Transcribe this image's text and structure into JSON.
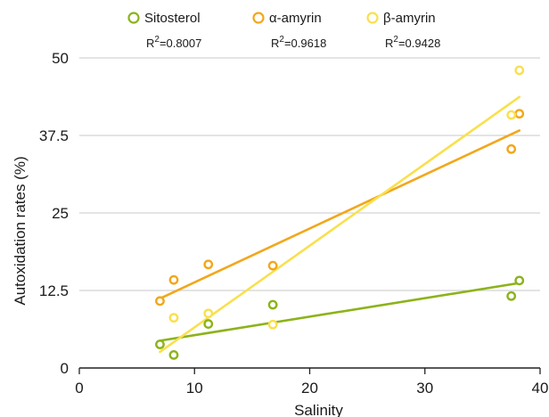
{
  "chart_data": {
    "type": "scatter",
    "xlabel": "Salinity",
    "ylabel": "Autoxidation rates (%)",
    "xlim": [
      0,
      40
    ],
    "ylim": [
      0,
      50
    ],
    "x_ticks": [
      0,
      10,
      20,
      30,
      40
    ],
    "x_tick_labels": [
      "0",
      "10",
      "20",
      "30",
      "40"
    ],
    "y_ticks": [
      0,
      12.5,
      25,
      37.5,
      50
    ],
    "y_tick_labels": [
      "0",
      "12.5",
      "25",
      "37.5",
      "50"
    ],
    "grid": "horizontal",
    "legend_position": "top",
    "series": [
      {
        "name": "Sitosterol",
        "r2_label": "R",
        "r2_exp": "2",
        "r2_value": "=0.8007",
        "color": "#8cb31a",
        "points": [
          {
            "x": 7,
            "y": 3.8
          },
          {
            "x": 8.2,
            "y": 2.1
          },
          {
            "x": 11.2,
            "y": 7.1
          },
          {
            "x": 16.8,
            "y": 10.2
          },
          {
            "x": 37.5,
            "y": 11.6
          },
          {
            "x": 38.2,
            "y": 14.1
          }
        ],
        "trendline": {
          "x": [
            7,
            38.2
          ],
          "y": [
            4.4,
            13.7
          ]
        }
      },
      {
        "name": "α-amyrin",
        "r2_label": "R",
        "r2_exp": "2",
        "r2_value": "=0.9618",
        "color": "#f2a71b",
        "points": [
          {
            "x": 7,
            "y": 10.8
          },
          {
            "x": 8.2,
            "y": 14.2
          },
          {
            "x": 11.2,
            "y": 16.7
          },
          {
            "x": 16.8,
            "y": 16.5
          },
          {
            "x": 37.5,
            "y": 35.3
          },
          {
            "x": 38.2,
            "y": 41
          }
        ],
        "trendline": {
          "x": [
            7,
            38.2
          ],
          "y": [
            11.2,
            38.3
          ]
        }
      },
      {
        "name": "β-amyrin",
        "r2_label": "R",
        "r2_exp": "2",
        "r2_value": "=0.9428",
        "color": "#f9e04d",
        "points": [
          {
            "x": 8.2,
            "y": 8.1
          },
          {
            "x": 11.2,
            "y": 8.8
          },
          {
            "x": 16.8,
            "y": 7
          },
          {
            "x": 37.5,
            "y": 40.8
          },
          {
            "x": 38.2,
            "y": 48
          }
        ],
        "trendline": {
          "x": [
            7,
            38.2
          ],
          "y": [
            2.6,
            43.7
          ]
        }
      }
    ]
  }
}
